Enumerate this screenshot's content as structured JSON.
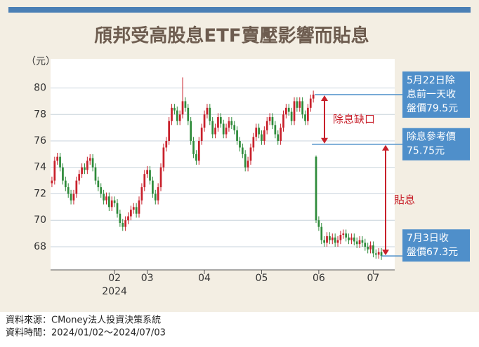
{
  "chart_data": {
    "type": "candlestick",
    "title": "頎邦受高股息ETF賣壓影響而貼息",
    "y_unit": "（元）",
    "up_color": "#c8202b",
    "down_color": "#2e8b3a",
    "ylim": [
      66.25,
      82.2
    ],
    "yticks": [
      68,
      70,
      72,
      74,
      76,
      78,
      80
    ],
    "xlim": [
      0,
      122
    ],
    "xticks": [
      {
        "value": 23,
        "label": "02"
      },
      {
        "value": 35,
        "label": "03"
      },
      {
        "value": 56,
        "label": "04"
      },
      {
        "value": 77,
        "label": "05"
      },
      {
        "value": 98,
        "label": "06"
      },
      {
        "value": 118,
        "label": "07"
      }
    ],
    "year_label": "2024",
    "open": [
      72.8,
      73.0,
      74.5,
      74.8,
      74.0,
      73.0,
      72.5,
      72.0,
      71.5,
      72.0,
      73.0,
      73.5,
      74.0,
      73.8,
      74.5,
      74.7,
      74.0,
      73.0,
      72.5,
      72.0,
      71.5,
      71.8,
      71.0,
      71.5,
      71.3,
      70.5,
      69.8,
      69.5,
      70.0,
      70.3,
      70.8,
      71.0,
      70.5,
      71.5,
      72.5,
      73.5,
      73.8,
      73.0,
      72.0,
      71.5,
      72.5,
      74.0,
      75.5,
      76.0,
      77.5,
      78.5,
      78.3,
      77.5,
      78.0,
      79.0,
      78.5,
      77.5,
      76.0,
      75.0,
      74.5,
      76.0,
      77.0,
      78.0,
      78.5,
      77.5,
      76.5,
      77.0,
      77.8,
      77.3,
      76.5,
      77.0,
      77.5,
      77.2,
      76.8,
      76.0,
      75.5,
      75.0,
      74.0,
      74.5,
      75.5,
      76.3,
      77.0,
      76.5,
      76.0,
      76.8,
      77.5,
      77.8,
      77.2,
      76.5,
      76.0,
      77.0,
      78.0,
      78.5,
      78.2,
      77.5,
      79.0,
      78.5,
      79.0,
      78.0,
      77.5,
      78.5,
      79.2,
      74.8,
      70.0,
      69.5,
      68.5,
      68.3,
      68.8,
      68.5,
      68.7,
      68.3,
      68.5,
      68.9,
      69.0,
      68.7,
      68.5,
      68.7,
      68.4,
      68.2,
      68.5,
      68.3,
      68.0,
      67.8,
      68.1,
      67.5,
      67.4,
      67.6
    ],
    "close": [
      73.0,
      74.5,
      74.8,
      74.0,
      73.0,
      72.5,
      72.0,
      71.5,
      72.0,
      73.0,
      73.5,
      74.0,
      73.8,
      74.5,
      74.7,
      74.0,
      73.0,
      72.5,
      72.0,
      71.5,
      71.8,
      71.0,
      71.5,
      71.3,
      70.5,
      69.8,
      69.5,
      70.0,
      70.3,
      70.8,
      71.0,
      70.5,
      71.5,
      72.5,
      73.5,
      73.8,
      73.0,
      72.0,
      71.5,
      72.5,
      74.0,
      75.5,
      76.0,
      77.5,
      78.5,
      78.3,
      77.5,
      78.0,
      79.0,
      78.5,
      77.5,
      76.0,
      75.0,
      74.5,
      76.0,
      77.0,
      78.0,
      78.5,
      77.5,
      76.5,
      77.0,
      77.8,
      77.3,
      76.5,
      77.0,
      77.5,
      77.2,
      76.8,
      76.0,
      75.5,
      75.0,
      74.0,
      74.5,
      75.5,
      76.3,
      77.0,
      76.5,
      76.0,
      76.8,
      77.5,
      77.8,
      77.2,
      76.5,
      76.0,
      77.0,
      78.0,
      78.5,
      78.2,
      77.5,
      79.0,
      78.5,
      79.0,
      78.0,
      77.5,
      78.5,
      79.2,
      79.5,
      70.0,
      69.5,
      68.5,
      68.3,
      68.8,
      68.5,
      68.7,
      68.3,
      68.5,
      68.9,
      69.0,
      68.7,
      68.5,
      68.7,
      68.4,
      68.2,
      68.5,
      68.3,
      68.0,
      67.8,
      68.1,
      67.5,
      67.4,
      67.6,
      67.3
    ],
    "high": [
      73.3,
      74.8,
      75.1,
      75.1,
      74.3,
      73.3,
      72.8,
      72.3,
      72.3,
      73.3,
      73.8,
      74.3,
      74.3,
      74.8,
      75.0,
      75.0,
      74.3,
      73.3,
      72.8,
      72.3,
      72.1,
      72.1,
      71.8,
      71.8,
      71.6,
      70.8,
      70.1,
      70.3,
      70.6,
      71.1,
      71.3,
      71.3,
      71.8,
      72.8,
      73.8,
      74.1,
      74.1,
      73.3,
      72.3,
      72.8,
      74.3,
      75.8,
      76.3,
      77.8,
      78.8,
      78.8,
      78.6,
      78.3,
      80.8,
      79.3,
      78.8,
      77.8,
      76.3,
      75.3,
      76.3,
      77.3,
      78.3,
      78.8,
      78.8,
      77.8,
      77.3,
      78.1,
      78.1,
      77.6,
      77.3,
      77.8,
      77.8,
      77.5,
      77.1,
      76.3,
      75.8,
      75.3,
      74.8,
      75.8,
      76.6,
      77.3,
      77.3,
      76.8,
      77.1,
      77.8,
      78.1,
      78.1,
      77.5,
      76.8,
      77.3,
      78.3,
      78.8,
      78.8,
      78.5,
      79.3,
      79.3,
      79.3,
      79.3,
      78.3,
      78.8,
      79.5,
      79.8,
      74.9,
      70.3,
      69.8,
      68.8,
      69.1,
      69.1,
      69.0,
      69.0,
      68.8,
      69.2,
      69.3,
      69.3,
      69.0,
      69.0,
      69.0,
      68.7,
      68.8,
      68.8,
      68.6,
      68.3,
      68.4,
      68.4,
      67.8,
      67.9,
      67.9
    ],
    "low": [
      72.5,
      72.7,
      74.2,
      73.7,
      72.7,
      72.2,
      71.7,
      71.2,
      71.2,
      71.7,
      72.7,
      73.2,
      73.5,
      73.5,
      74.2,
      73.7,
      72.7,
      72.2,
      71.7,
      71.2,
      71.2,
      70.7,
      70.7,
      71.0,
      70.2,
      69.5,
      69.2,
      69.2,
      69.7,
      70.0,
      70.5,
      70.2,
      70.2,
      71.2,
      72.2,
      73.2,
      72.7,
      71.7,
      71.2,
      71.2,
      72.2,
      73.7,
      75.2,
      75.7,
      77.2,
      78.0,
      77.2,
      77.2,
      77.7,
      78.2,
      77.2,
      75.7,
      74.7,
      74.2,
      74.2,
      75.7,
      76.7,
      77.7,
      77.2,
      76.2,
      76.2,
      76.7,
      77.0,
      76.2,
      76.2,
      76.7,
      76.9,
      76.5,
      75.7,
      75.2,
      74.7,
      73.7,
      73.7,
      74.2,
      75.2,
      76.0,
      76.2,
      75.7,
      75.7,
      76.5,
      77.2,
      76.9,
      76.2,
      75.7,
      75.7,
      76.7,
      77.7,
      77.9,
      77.2,
      77.2,
      78.2,
      78.2,
      77.7,
      77.2,
      77.2,
      78.2,
      78.9,
      69.8,
      69.2,
      68.2,
      68.0,
      68.0,
      68.2,
      68.2,
      68.0,
      68.0,
      68.2,
      68.6,
      68.4,
      68.2,
      68.2,
      68.1,
      67.9,
      67.9,
      68.0,
      67.7,
      67.5,
      67.5,
      67.2,
      67.1,
      67.1,
      67.0
    ],
    "annotations": [
      {
        "lines": [
          "5月22日除",
          "息前一天收",
          "盤價79.5元"
        ],
        "value": 79.5
      },
      {
        "lines": [
          "除息參考價",
          "75.75元"
        ],
        "value": 75.75
      },
      {
        "lines": [
          "7月3日收",
          "盤價67.3元"
        ],
        "value": 67.3
      }
    ],
    "gap_label": "除息缺口",
    "discount_label": "貼息",
    "source": [
      "資料來源：CMoney法人投資決策系統",
      "資料時間：2024/01/02～2024/07/03"
    ]
  }
}
